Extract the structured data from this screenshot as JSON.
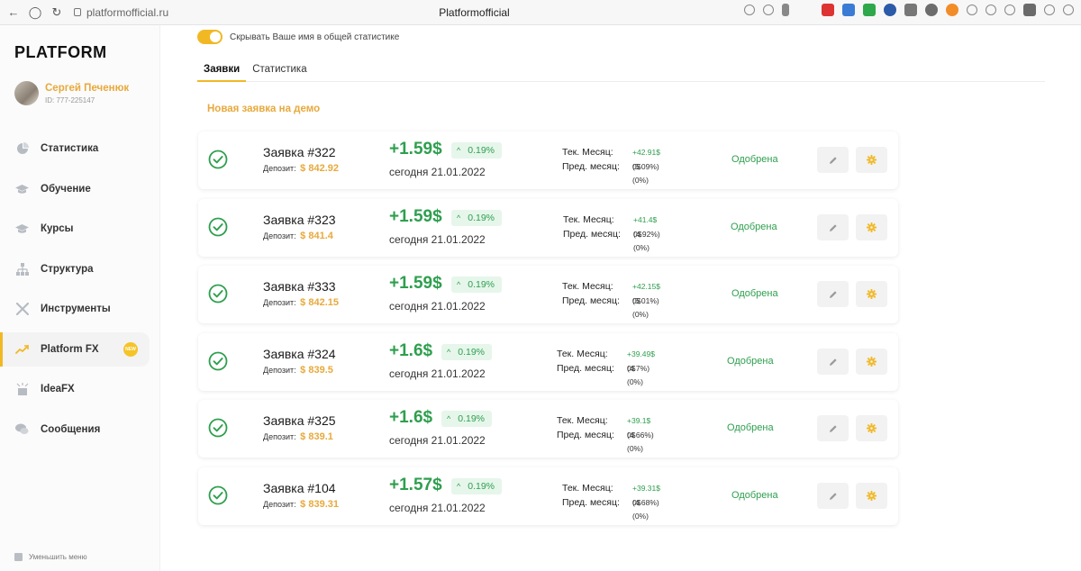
{
  "browser": {
    "url": "platformofficial.ru",
    "title": "Platformofficial"
  },
  "sidebar": {
    "logo": "PLATFORM",
    "user": {
      "name": "Сергей Печенюк",
      "id": "ID: 777-225147"
    },
    "items": [
      {
        "label": "Статистика",
        "icon": "pie-chart-icon"
      },
      {
        "label": "Обучение",
        "icon": "graduation-cap-icon"
      },
      {
        "label": "Курсы",
        "icon": "graduation-cap-icon"
      },
      {
        "label": "Структура",
        "icon": "org-structure-icon"
      },
      {
        "label": "Инструменты",
        "icon": "tools-icon"
      },
      {
        "label": "Platform FX",
        "icon": "trend-chart-icon",
        "badge": "NEW",
        "active": true
      },
      {
        "label": "IdeaFX",
        "icon": "lightbulb-icon"
      },
      {
        "label": "Сообщения",
        "icon": "chat-bubbles-icon"
      }
    ],
    "collapse_label": "Уменьшить меню"
  },
  "main": {
    "toggle_label": "Скрывать Ваше имя в общей статистике",
    "toggle_on": true,
    "tabs": [
      {
        "label": "Заявки",
        "active": true
      },
      {
        "label": "Статистика",
        "active": false
      }
    ],
    "section_title": "Новая заявка на демо",
    "deposit_label": "Депозит:",
    "cur_month_label": "Тек. Месяц:",
    "prev_month_label": "Пред. месяц:",
    "requests": [
      {
        "name": "Заявка #322",
        "deposit": "$ 842.92",
        "profit": "+1.59$",
        "pct": "0.19%",
        "date": "сегодня 21.01.2022",
        "cur_value": "+42.91$",
        "cur_pct": "(5.09%)",
        "prev_value": "0$ (0%)",
        "status": "Одобрена"
      },
      {
        "name": "Заявка #323",
        "deposit": "$ 841.4",
        "profit": "+1.59$",
        "pct": "0.19%",
        "date": "сегодня 21.01.2022",
        "cur_value": "+41.4$",
        "cur_pct": "(4.92%)",
        "prev_value": "0$ (0%)",
        "status": "Одобрена"
      },
      {
        "name": "Заявка #333",
        "deposit": "$ 842.15",
        "profit": "+1.59$",
        "pct": "0.19%",
        "date": "сегодня 21.01.2022",
        "cur_value": "+42.15$",
        "cur_pct": "(5.01%)",
        "prev_value": "0$ (0%)",
        "status": "Одобрена"
      },
      {
        "name": "Заявка #324",
        "deposit": "$ 839.5",
        "profit": "+1.6$",
        "pct": "0.19%",
        "date": "сегодня 21.01.2022",
        "cur_value": "+39.49$",
        "cur_pct": "(4.7%)",
        "prev_value": "0$ (0%)",
        "status": "Одобрена"
      },
      {
        "name": "Заявка #325",
        "deposit": "$ 839.1",
        "profit": "+1.6$",
        "pct": "0.19%",
        "date": "сегодня 21.01.2022",
        "cur_value": "+39.1$",
        "cur_pct": "(4.66%)",
        "prev_value": "0$ (0%)",
        "status": "Одобрена"
      },
      {
        "name": "Заявка #104",
        "deposit": "$ 839.31",
        "profit": "+1.57$",
        "pct": "0.19%",
        "date": "сегодня 21.01.2022",
        "cur_value": "+39.31$",
        "cur_pct": "(4.68%)",
        "prev_value": "0$ (0%)",
        "status": "Одобрена"
      }
    ]
  },
  "colors": {
    "accent": "#f2b824",
    "gold_text": "#e8a93c",
    "green": "#2e9f4e"
  }
}
